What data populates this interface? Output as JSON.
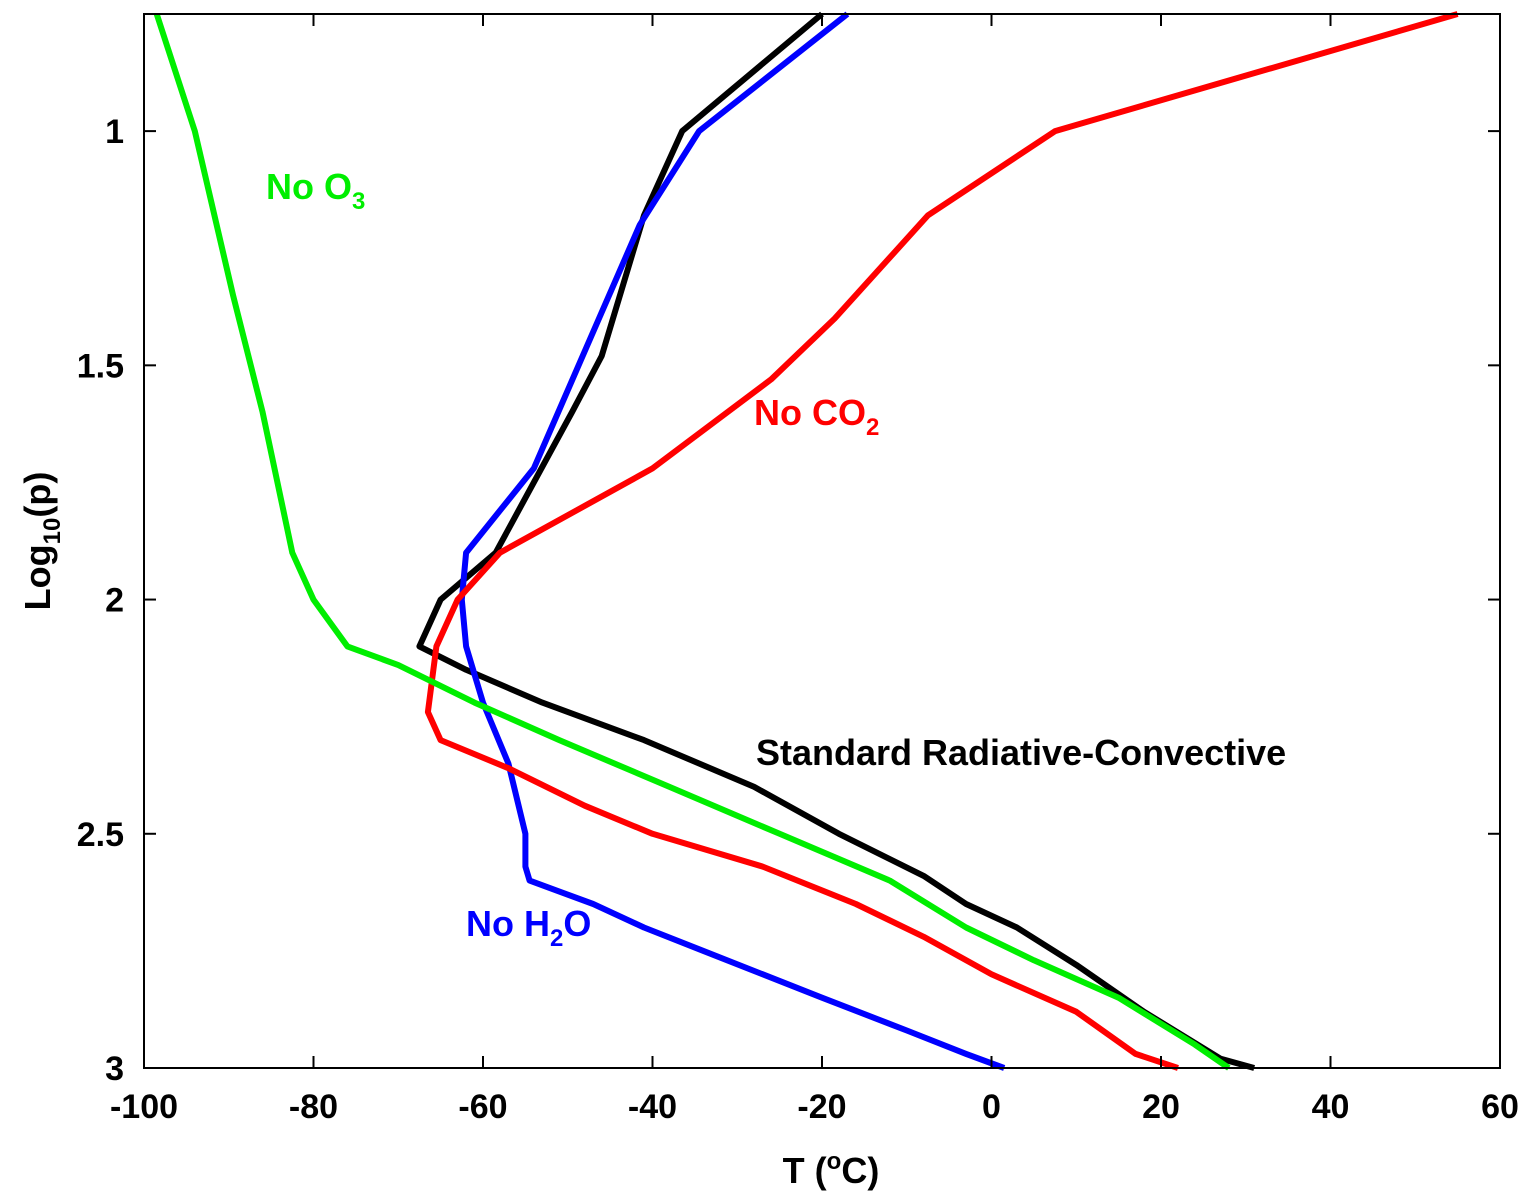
{
  "chart_data": {
    "type": "line",
    "xlabel": "T (°C)",
    "xlabel_parts": {
      "base": "T (",
      "sup": "o",
      "tail": "C)"
    },
    "ylabel": "Log10(p)",
    "ylabel_parts": {
      "base": "Log",
      "sub": "10",
      "tail": "(p)"
    },
    "xlim": [
      -100,
      60
    ],
    "ylim": [
      0.75,
      3
    ],
    "y_inverted": true,
    "x_ticks": [
      -100,
      -80,
      -60,
      -40,
      -20,
      0,
      20,
      40,
      60
    ],
    "y_ticks": [
      1,
      1.5,
      2,
      2.5,
      3
    ],
    "x_tick_labels": [
      "-100",
      "-80",
      "-60",
      "-40",
      "-20",
      "0",
      "20",
      "40",
      "60"
    ],
    "y_tick_labels": [
      "1",
      "1.5",
      "2",
      "2.5",
      "3"
    ],
    "grid": false,
    "legend": "none",
    "series": [
      {
        "key": "standard",
        "color": "#000000",
        "annotation": {
          "base": "Standard Radiative-Convective",
          "sub": "",
          "tail": ""
        },
        "points": [
          [
            -20,
            0.75
          ],
          [
            -36.5,
            1.0
          ],
          [
            -41,
            1.18
          ],
          [
            -46,
            1.48
          ],
          [
            -49.5,
            1.6
          ],
          [
            -54,
            1.75
          ],
          [
            -58.5,
            1.9
          ],
          [
            -65,
            2.0
          ],
          [
            -67.5,
            2.1
          ],
          [
            -62,
            2.15
          ],
          [
            -53,
            2.22
          ],
          [
            -41,
            2.3
          ],
          [
            -28,
            2.4
          ],
          [
            -18,
            2.5
          ],
          [
            -8,
            2.59
          ],
          [
            -3,
            2.65
          ],
          [
            3,
            2.7
          ],
          [
            10,
            2.78
          ],
          [
            18,
            2.88
          ],
          [
            27,
            2.98
          ],
          [
            31,
            3.0
          ]
        ]
      },
      {
        "key": "no_h2o",
        "color": "#0000ff",
        "annotation": {
          "base": "No H",
          "sub": "2",
          "tail": "O"
        },
        "points": [
          [
            -17,
            0.75
          ],
          [
            -34.5,
            1.0
          ],
          [
            -41.5,
            1.2
          ],
          [
            -48,
            1.47
          ],
          [
            -54,
            1.72
          ],
          [
            -62,
            1.9
          ],
          [
            -62.5,
            2.0
          ],
          [
            -62,
            2.1
          ],
          [
            -60,
            2.22
          ],
          [
            -57,
            2.35
          ],
          [
            -55,
            2.5
          ],
          [
            -55,
            2.57
          ],
          [
            -54.5,
            2.6
          ],
          [
            -47,
            2.65
          ],
          [
            -41,
            2.7
          ],
          [
            -34,
            2.75
          ],
          [
            -20,
            2.85
          ],
          [
            -10,
            2.92
          ],
          [
            -3,
            2.97
          ],
          [
            1.5,
            3.0
          ]
        ]
      },
      {
        "key": "no_co2",
        "color": "#ff0000",
        "annotation": {
          "base": "No CO",
          "sub": "2",
          "tail": ""
        },
        "points": [
          [
            55,
            0.75
          ],
          [
            7.5,
            1.0
          ],
          [
            -7.5,
            1.18
          ],
          [
            -18.5,
            1.4
          ],
          [
            -26,
            1.53
          ],
          [
            -40,
            1.72
          ],
          [
            -48,
            1.8
          ],
          [
            -58,
            1.9
          ],
          [
            -63,
            2.0
          ],
          [
            -65.5,
            2.1
          ],
          [
            -66.5,
            2.24
          ],
          [
            -65,
            2.3
          ],
          [
            -57,
            2.36
          ],
          [
            -48,
            2.44
          ],
          [
            -40,
            2.5
          ],
          [
            -27,
            2.57
          ],
          [
            -16,
            2.65
          ],
          [
            -8,
            2.72
          ],
          [
            0,
            2.8
          ],
          [
            10,
            2.88
          ],
          [
            17,
            2.97
          ],
          [
            22,
            3.0
          ]
        ]
      },
      {
        "key": "no_o3",
        "color": "#00ee00",
        "annotation": {
          "base": "No O",
          "sub": "3",
          "tail": ""
        },
        "points": [
          [
            -98.5,
            0.75
          ],
          [
            -94,
            1.0
          ],
          [
            -89.5,
            1.35
          ],
          [
            -86,
            1.6
          ],
          [
            -82.5,
            1.9
          ],
          [
            -80,
            2.0
          ],
          [
            -76,
            2.1
          ],
          [
            -70,
            2.14
          ],
          [
            -61,
            2.22
          ],
          [
            -51,
            2.3
          ],
          [
            -38,
            2.4
          ],
          [
            -25,
            2.5
          ],
          [
            -12,
            2.6
          ],
          [
            -3,
            2.7
          ],
          [
            5,
            2.77
          ],
          [
            15,
            2.85
          ],
          [
            24,
            2.95
          ],
          [
            28,
            3.0
          ]
        ]
      }
    ]
  }
}
